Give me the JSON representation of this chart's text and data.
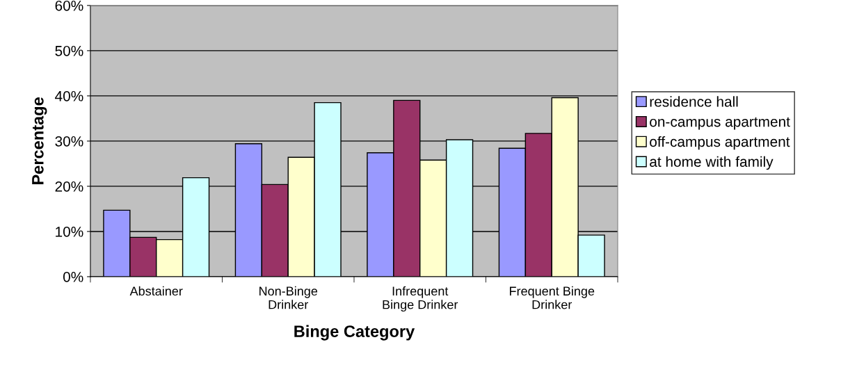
{
  "chart_data": {
    "type": "bar",
    "xlabel": "Binge Category",
    "ylabel": "Percentage",
    "categories": [
      "Abstainer",
      "Non-Binge\nDrinker",
      "Infrequent\nBinge Drinker",
      "Frequent Binge\nDrinker"
    ],
    "series": [
      {
        "name": "residence hall",
        "color": "#9999ff",
        "values": [
          14.7,
          29.4,
          27.4,
          28.4
        ]
      },
      {
        "name": "on-campus apartment",
        "color": "#993366",
        "values": [
          8.7,
          20.4,
          39.0,
          31.7
        ]
      },
      {
        "name": "off-campus apartment",
        "color": "#ffffcc",
        "values": [
          8.2,
          26.4,
          25.8,
          39.6
        ]
      },
      {
        "name": "at home with family",
        "color": "#ccffff",
        "values": [
          21.9,
          38.5,
          30.3,
          9.2
        ]
      }
    ],
    "ylim": [
      0,
      60
    ],
    "yticks": [
      {
        "value": 0,
        "label": "0%"
      },
      {
        "value": 10,
        "label": "10%"
      },
      {
        "value": 20,
        "label": "20%"
      },
      {
        "value": 30,
        "label": "30%"
      },
      {
        "value": 40,
        "label": "40%"
      },
      {
        "value": 50,
        "label": "50%"
      },
      {
        "value": 60,
        "label": "60%"
      }
    ],
    "grid": "y",
    "legend": "right"
  }
}
